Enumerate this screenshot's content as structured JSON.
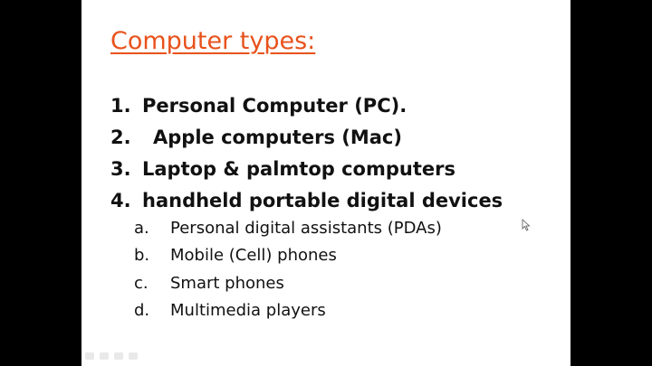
{
  "slide": {
    "title": "Computer types:",
    "items": [
      {
        "num": "1.",
        "label": "Personal Computer (PC)."
      },
      {
        "num": "2.",
        "label": "Apple computers (Mac)"
      },
      {
        "num": "3.",
        "label": "Laptop & palmtop computers"
      },
      {
        "num": "4.",
        "label": "handheld portable digital devices"
      }
    ],
    "subitems": [
      {
        "letter": "a.",
        "label": "Personal digital assistants (PDAs)"
      },
      {
        "letter": "b.",
        "label": "Mobile (Cell) phones"
      },
      {
        "letter": "c.",
        "label": "Smart phones"
      },
      {
        "letter": "d.",
        "label": "Multimedia players"
      }
    ]
  },
  "colors": {
    "title": "#e8521c",
    "text": "#111111",
    "background": "#ffffff",
    "letterbox": "#000000"
  },
  "icons": {
    "cursor": "mouse-pointer-icon"
  }
}
